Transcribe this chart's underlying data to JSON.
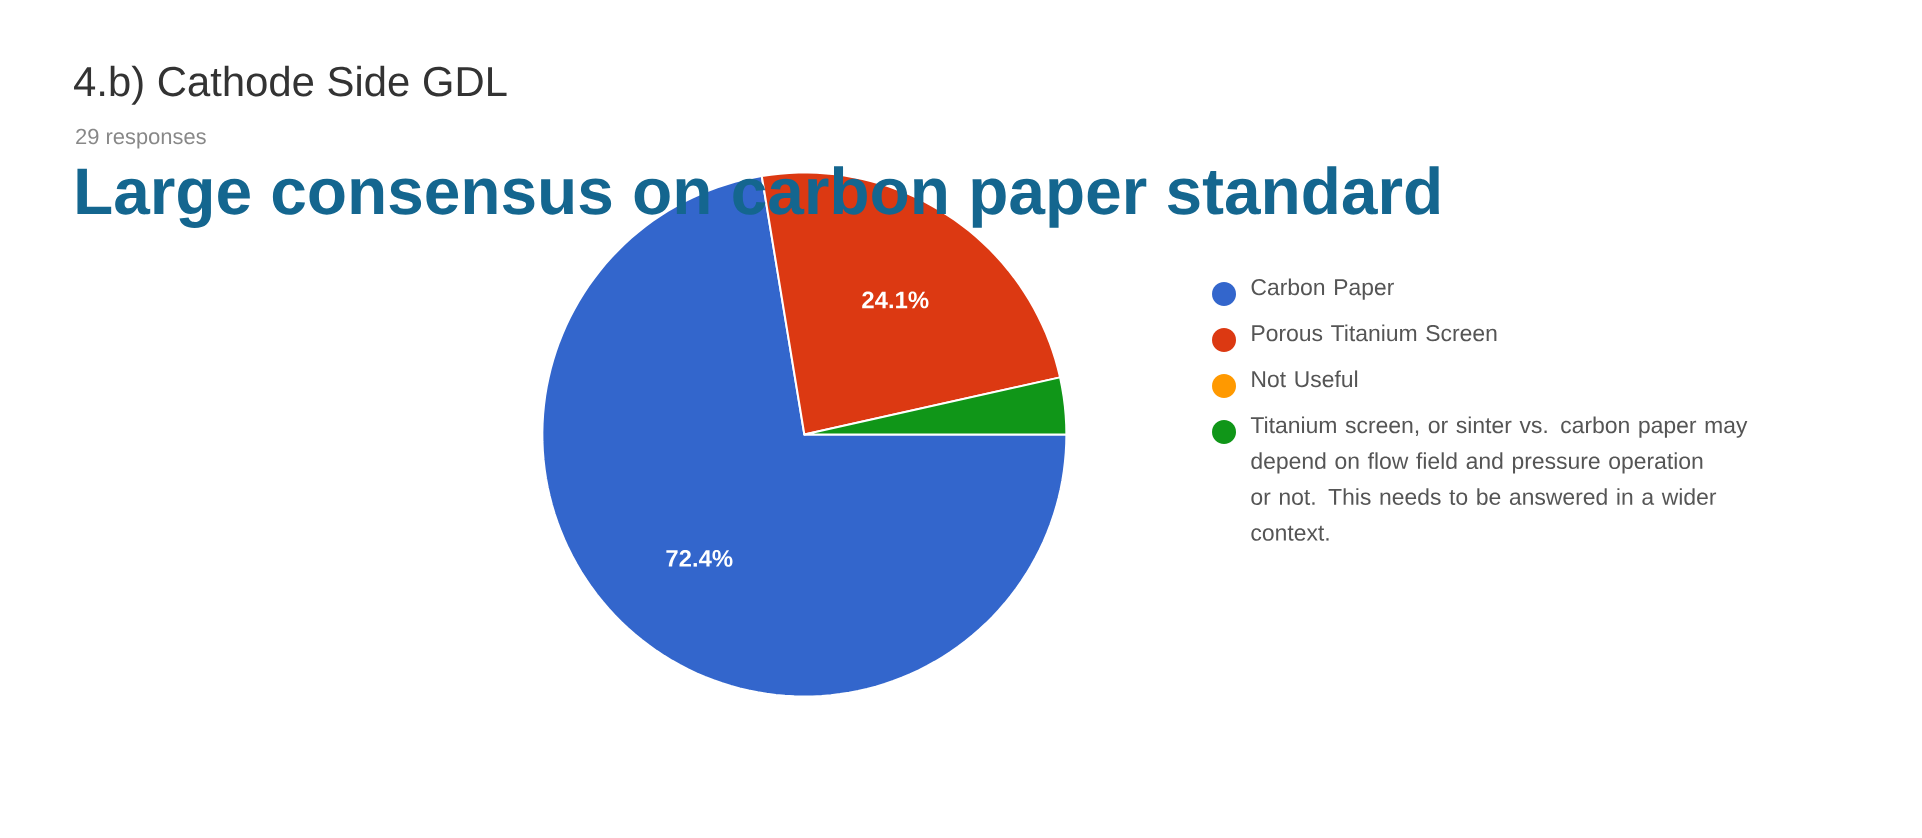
{
  "chart_data": {
    "type": "pie",
    "title": "4.b) Cathode Side GDL",
    "subtitle": "29 responses",
    "annotations": [
      "Large consensus on carbon paper standard"
    ],
    "categories": [
      "Carbon Paper",
      "Porous Titanium Screen",
      "Not Useful",
      "Titanium screen, or sinter vs. carbon paper may depend on flow field and pressure operation or not. This needs to be answered in a wider context."
    ],
    "values": [
      72.4,
      24.1,
      0,
      3.5
    ],
    "colors": [
      "#3366cc",
      "#dc3912",
      "#ff9900",
      "#109618"
    ],
    "value_labels": [
      "72.4%",
      "24.1%",
      null,
      null
    ],
    "legend": "right"
  }
}
